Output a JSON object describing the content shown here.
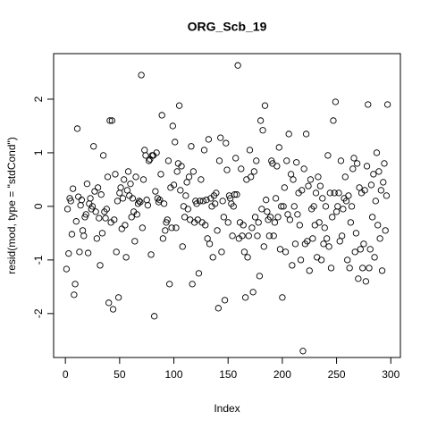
{
  "chart_data": {
    "type": "scatter",
    "title": "ORG_Scb_19",
    "x_label": "Index",
    "y_label": "resid(mod, type = \"stdCond\")",
    "x": [
      1,
      2,
      3,
      4,
      5,
      6,
      7,
      8,
      9,
      10,
      11,
      12,
      13,
      14,
      15,
      16,
      17,
      18,
      19,
      20,
      21,
      22,
      23,
      24,
      25,
      26,
      27,
      28,
      29,
      30,
      31,
      32,
      33,
      34,
      35,
      36,
      37,
      38,
      39,
      40,
      41,
      42,
      43,
      44,
      45,
      46,
      47,
      48,
      49,
      50,
      51,
      52,
      53,
      54,
      55,
      56,
      57,
      58,
      59,
      60,
      61,
      62,
      63,
      64,
      65,
      66,
      67,
      68,
      69,
      70,
      71,
      72,
      73,
      74,
      75,
      76,
      77,
      78,
      79,
      80,
      81,
      82,
      83,
      84,
      85,
      86,
      87,
      88,
      89,
      90,
      91,
      92,
      93,
      94,
      95,
      96,
      97,
      98,
      99,
      100,
      101,
      102,
      103,
      104,
      105,
      106,
      107,
      108,
      109,
      110,
      111,
      112,
      113,
      114,
      115,
      116,
      117,
      118,
      119,
      120,
      121,
      122,
      123,
      124,
      125,
      126,
      127,
      128,
      129,
      130,
      131,
      132,
      133,
      134,
      135,
      136,
      137,
      138,
      139,
      140,
      141,
      142,
      143,
      144,
      145,
      146,
      147,
      148,
      149,
      150,
      151,
      152,
      153,
      154,
      155,
      156,
      157,
      158,
      159,
      160,
      161,
      162,
      163,
      164,
      165,
      166,
      167,
      168,
      169,
      170,
      171,
      172,
      173,
      174,
      175,
      176,
      177,
      178,
      179,
      180,
      181,
      182,
      183,
      184,
      185,
      186,
      187,
      188,
      189,
      190,
      191,
      192,
      193,
      194,
      195,
      196,
      197,
      198,
      199,
      200,
      201,
      202,
      203,
      204,
      205,
      206,
      207,
      208,
      209,
      210,
      211,
      212,
      213,
      214,
      215,
      216,
      217,
      218,
      219,
      220,
      221,
      222,
      223,
      224,
      225,
      226,
      227,
      228,
      229,
      230,
      231,
      232,
      233,
      234,
      235,
      236,
      237,
      238,
      239,
      240,
      241,
      242,
      243,
      244,
      245,
      246,
      247,
      248,
      249,
      250,
      251,
      252,
      253,
      254,
      255,
      256,
      257,
      258,
      259,
      260,
      261,
      262,
      263,
      264,
      265,
      266,
      267,
      268,
      269,
      270,
      271,
      272,
      273,
      274,
      275,
      276,
      277,
      278,
      279,
      280,
      281,
      282,
      283,
      284,
      285,
      286,
      287,
      288,
      289,
      290,
      291,
      292,
      293,
      294,
      295,
      296,
      297
    ],
    "values": [
      -1.17,
      -0.05,
      -0.88,
      0.15,
      0.1,
      -0.52,
      0.33,
      -1.65,
      -1.45,
      -0.28,
      1.45,
      0.18,
      -0.85,
      0.02,
      0.12,
      -0.45,
      -0.55,
      -0.2,
      -0.15,
      0.42,
      -0.87,
      0.05,
      0.15,
      -0.05,
      0,
      1.12,
      0.28,
      -0.1,
      -0.6,
      0.35,
      -0.22,
      -1.1,
      0.22,
      -0.5,
      0.95,
      -0.1,
      -0.22,
      -0.05,
      0.55,
      -1.8,
      1.6,
      -0.3,
      1.6,
      -1.92,
      -0.25,
      0.6,
      -0.85,
      0.1,
      -1.7,
      0.25,
      0.35,
      -0.42,
      0.15,
      0.5,
      -0.35,
      -0.95,
      0.3,
      0.65,
      0.2,
      0.42,
      -0.2,
      0.15,
      -0.1,
      -0.65,
      0.55,
      -0.15,
      0.05,
      0.1,
      0.08,
      2.45,
      -0.4,
      0.5,
      1.05,
      0.95,
      0.12,
      0.02,
      0.85,
      0.88,
      -0.9,
      0.95,
      0.95,
      -2.05,
      0.28,
      1.0,
      0.15,
      0.08,
      0.12,
      0.6,
      1.7,
      -0.6,
      0.05,
      -0.45,
      -0.3,
      -0.25,
      0.85,
      -1.45,
      0.35,
      -0.4,
      1.5,
      0.4,
      1.2,
      -0.4,
      0.65,
      0.8,
      1.88,
      0.3,
      0.75,
      -0.75,
      0.0,
      -0.2,
      0.2,
      0.45,
      -0.05,
      0.55,
      -0.25,
      1.12,
      -1.45,
      0.65,
      -0.3,
      0.1,
      0.05,
      -0.25,
      -1.25,
      0.1,
      0.5,
      -0.3,
      0.1,
      1.05,
      -0.35,
      0.12,
      -0.6,
      1.25,
      -0.7,
      0.15,
      0.0,
      -0.95,
      0.2,
      0.05,
      0.25,
      -0.45,
      -1.9,
      0.85,
      1.28,
      -0.85,
      0.1,
      -0.2,
      -1.75,
      1.18,
      0.68,
      -0.3,
      0.2,
      0.15,
      0.05,
      -0.55,
      0.0,
      0.22,
      0.9,
      0.22,
      2.63,
      -0.6,
      -0.3,
      0.7,
      -0.55,
      -0.35,
      -0.85,
      -1.7,
      0.5,
      -0.95,
      -0.55,
      1.05,
      0.55,
      -0.4,
      -1.6,
      0.65,
      -0.2,
      0.85,
      -0.55,
      -0.3,
      -1.3,
      1.6,
      -0.05,
      1.42,
      -0.75,
      1.88,
      0.12,
      -0.1,
      -0.25,
      -0.55,
      -0.2,
      0.85,
      0.8,
      -0.55,
      -0.3,
      0.15,
      0.75,
      -0.2,
      1.1,
      -0.8,
      0.0,
      -1.7,
      0.0,
      0.35,
      -0.85,
      0.85,
      -0.15,
      1.35,
      -0.25,
      0.6,
      -1.1,
      0.5,
      0.0,
      -0.7,
      0.82,
      -0.15,
      0.25,
      -0.35,
      -1.0,
      0.3,
      -2.7,
      0.7,
      -0.7,
      1.35,
      -0.65,
      0.38,
      -1.2,
      0.5,
      -0.05,
      -0.6,
      0.0,
      -0.35,
      0.25,
      -0.95,
      0.55,
      -0.3,
      0.38,
      -1.0,
      0.15,
      -0.7,
      -0.4,
      0.0,
      -0.6,
      0.95,
      -0.75,
      0.25,
      -1.15,
      -0.2,
      1.6,
      0.25,
      1.95,
      -0.1,
      0.0,
      0.25,
      -0.65,
      0.85,
      -0.55,
      -0.05,
      0.15,
      0.55,
      0.1,
      -1.0,
      0.2,
      -1.15,
      -0.3,
      0.0,
      0.7,
      0.9,
      -0.85,
      -0.5,
      0.8,
      -1.35,
      0.35,
      -0.8,
      0.25,
      -1.15,
      -0.7,
      0.3,
      -1.4,
      0.75,
      1.9,
      -1.15,
      -0.8,
      0.4,
      -0.2,
      0.6,
      -0.95,
      0.1,
      1.0,
      -0.35,
      0.65,
      -0.6,
      0.3,
      -1.2,
      0.45,
      0.8,
      -0.45,
      0.2,
      1.9
    ],
    "color": "#000000",
    "xlim": [
      -10.84,
      308.84
    ],
    "xticks": [
      0,
      50,
      100,
      150,
      200,
      250,
      300
    ],
    "ylim": [
      -2.82,
      2.85
    ],
    "yticks": [
      -2,
      -1,
      0,
      1,
      2
    ],
    "grid": false
  }
}
